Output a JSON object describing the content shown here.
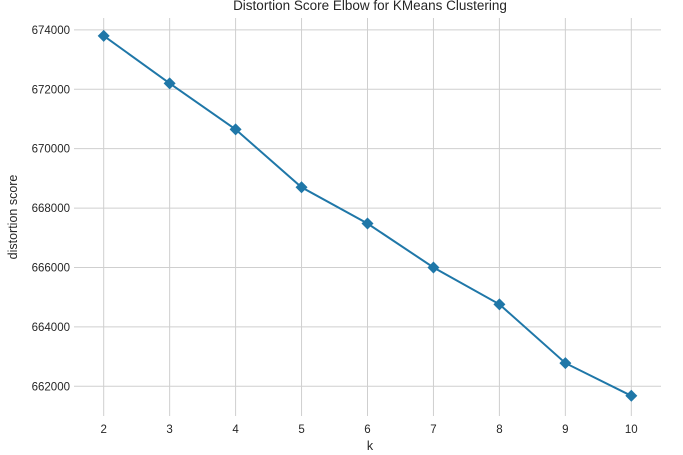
{
  "chart_data": {
    "type": "line",
    "title": "Distortion Score Elbow for KMeans Clustering",
    "xlabel": "k",
    "ylabel": "distortion score",
    "x": [
      2,
      3,
      4,
      5,
      6,
      7,
      8,
      9,
      10
    ],
    "series": [
      {
        "values": [
          673800,
          672200,
          670650,
          668700,
          667480,
          666000,
          664760,
          662780,
          661680
        ],
        "color": "#1f77a8",
        "marker": "diamond"
      }
    ],
    "xlim": [
      1.55,
      10.45
    ],
    "ylim": [
      661000,
      674400
    ],
    "xticks": [
      "2",
      "3",
      "4",
      "5",
      "6",
      "7",
      "8",
      "9",
      "10"
    ],
    "yticks": [
      "662000",
      "664000",
      "666000",
      "668000",
      "670000",
      "672000",
      "674000"
    ],
    "grid": true,
    "background": "#ffffff",
    "grid_color": "#cfcfcf"
  }
}
